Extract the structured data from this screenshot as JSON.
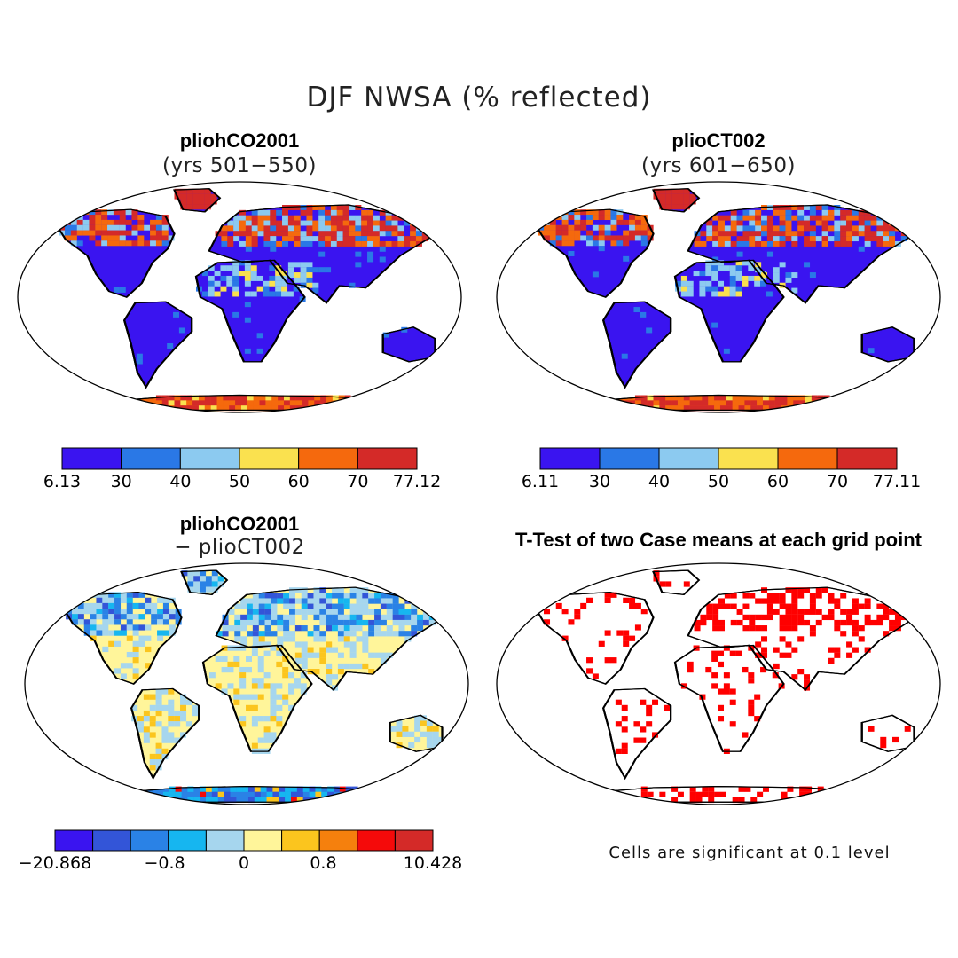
{
  "title": "DJF NWSA (% reflected)",
  "panels": {
    "top_left": {
      "title": "pliohCO2001",
      "subtitle": "(yrs 501−550)",
      "colorbar": {
        "labels": [
          "6.13",
          "30",
          "40",
          "50",
          "60",
          "70",
          "77.12"
        ],
        "colors": [
          "#3a14f0",
          "#2a78e6",
          "#8ccaf0",
          "#fae14f",
          "#f5690d",
          "#d42a28"
        ]
      }
    },
    "top_right": {
      "title": "plioCT002",
      "subtitle": "(yrs 601−650)",
      "colorbar": {
        "labels": [
          "6.11",
          "30",
          "40",
          "50",
          "60",
          "70",
          "77.11"
        ],
        "colors": [
          "#3a14f0",
          "#2a78e6",
          "#8ccaf0",
          "#fae14f",
          "#f5690d",
          "#d42a28"
        ]
      }
    },
    "bottom_left": {
      "title": "pliohCO2001",
      "subtitle": "− plioCT002",
      "colorbar": {
        "labels": [
          "−20.868",
          "−0.8",
          "0",
          "0.8",
          "10.428"
        ],
        "colors": [
          "#3a14f0",
          "#3355d8",
          "#2a82e6",
          "#16b6f0",
          "#a6d6ee",
          "#fff59a",
          "#fbc51e",
          "#f5800d",
          "#f50a0a",
          "#d42a28"
        ]
      }
    },
    "bottom_right": {
      "title": "T-Test of two Case means at each grid point",
      "note": "Cells are significant at 0.1 level",
      "significant_color": "#ff0000"
    }
  }
}
